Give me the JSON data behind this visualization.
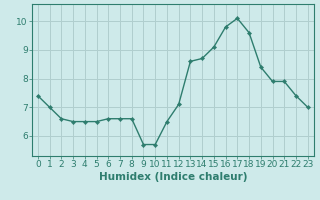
{
  "x": [
    0,
    1,
    2,
    3,
    4,
    5,
    6,
    7,
    8,
    9,
    10,
    11,
    12,
    13,
    14,
    15,
    16,
    17,
    18,
    19,
    20,
    21,
    22,
    23
  ],
  "y": [
    7.4,
    7.0,
    6.6,
    6.5,
    6.5,
    6.5,
    6.6,
    6.6,
    6.6,
    5.7,
    5.7,
    6.5,
    7.1,
    8.6,
    8.7,
    9.1,
    9.8,
    10.1,
    9.6,
    8.4,
    7.9,
    7.9,
    7.4,
    7.0
  ],
  "line_color": "#2e7d6e",
  "marker_color": "#2e7d6e",
  "bg_color": "#ceeaea",
  "grid_color": "#b0cece",
  "axis_color": "#2e7d6e",
  "xlabel": "Humidex (Indice chaleur)",
  "ylim": [
    5.3,
    10.6
  ],
  "xlim": [
    -0.5,
    23.5
  ],
  "yticks": [
    6,
    7,
    8,
    9,
    10
  ],
  "xticks": [
    0,
    1,
    2,
    3,
    4,
    5,
    6,
    7,
    8,
    9,
    10,
    11,
    12,
    13,
    14,
    15,
    16,
    17,
    18,
    19,
    20,
    21,
    22,
    23
  ],
  "tick_fontsize": 6.5,
  "label_fontsize": 7.5
}
